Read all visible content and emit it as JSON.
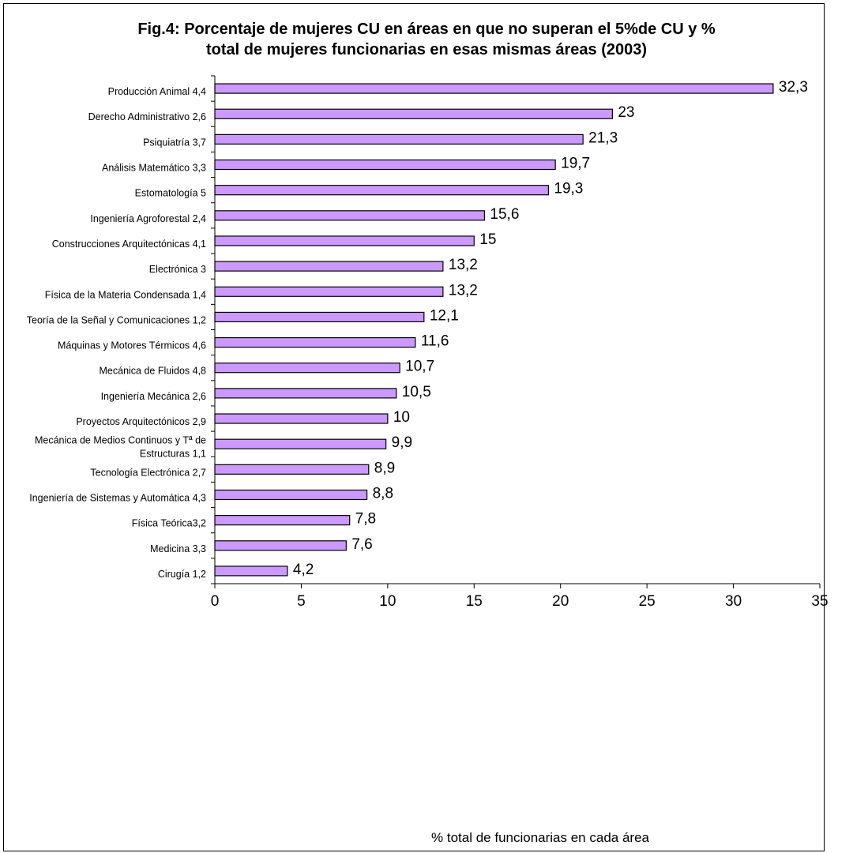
{
  "chart_data": {
    "type": "bar",
    "orientation": "horizontal",
    "title_lines": [
      "Fig.4: Porcentaje de mujeres CU en áreas en que no superan el 5%de CU y %",
      "total de mujeres funcionarias en esas mismas áreas (2003)"
    ],
    "xlabel": "% total de funcionarias en cada área",
    "ylabel": "",
    "xlim": [
      0,
      35
    ],
    "xticks": [
      "0",
      "5",
      "10",
      "15",
      "20",
      "25",
      "30",
      "35"
    ],
    "grid": false,
    "legend": "none",
    "bar_color": "#cc99ff",
    "bar_edge_color": "#000000",
    "categories": [
      [
        "Producción Animal  4,4"
      ],
      [
        "Derecho Administrativo 2,6"
      ],
      [
        "Psiquiatría  3,7"
      ],
      [
        "Análisis Matemático  3,3"
      ],
      [
        "Estomatología  5"
      ],
      [
        "Ingeniería Agroforestal  2,4"
      ],
      [
        "Construcciones Arquitectónicas  4,1"
      ],
      [
        "Electrónica  3"
      ],
      [
        "Física de la Materia Condensada  1,4"
      ],
      [
        "Teoría de la Señal y Comunicaciones  1,2"
      ],
      [
        "Máquinas y Motores Térmicos  4,6"
      ],
      [
        "Mecánica de Fluidos  4,8"
      ],
      [
        "Ingeniería Mecánica  2,6"
      ],
      [
        "Proyectos Arquitectónicos  2,9"
      ],
      [
        "Mecánica de Medios Continuos y Tª de",
        "Estructuras  1,1"
      ],
      [
        "Tecnología Electrónica  2,7"
      ],
      [
        "Ingeniería de Sistemas y Automática  4,3"
      ],
      [
        "Física Teórica3,2"
      ],
      [
        "Medicina  3,3"
      ],
      [
        "Cirugía  1,2"
      ]
    ],
    "values": [
      32.3,
      23,
      21.3,
      19.7,
      19.3,
      15.6,
      15,
      13.2,
      13.2,
      12.1,
      11.6,
      10.7,
      10.5,
      10,
      9.9,
      8.9,
      8.8,
      7.8,
      7.6,
      4.2
    ],
    "data_labels": [
      "32,3",
      "23",
      "21,3",
      "19,7",
      "19,3",
      "15,6",
      "15",
      "13,2",
      "13,2",
      "12,1",
      "11,6",
      "10,7",
      "10,5",
      "10",
      "9,9",
      "8,9",
      "8,8",
      "7,8",
      "7,6",
      "4,2"
    ]
  }
}
